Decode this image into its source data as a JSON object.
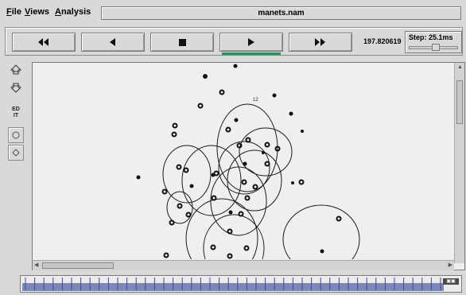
{
  "menu": {
    "file": "File",
    "views": "Views",
    "analysis": "Analysis"
  },
  "window": {
    "file_name": "manets.nam"
  },
  "controls": {
    "rewind_icon": "fast-rewind-icon",
    "back_icon": "step-back-icon",
    "stop_icon": "stop-icon",
    "play_icon": "play-icon",
    "forward_icon": "fast-forward-icon",
    "active_button": "play",
    "time": "197.820619",
    "step_label": "Step: 25.1ms",
    "step_slider_fraction": 0.55
  },
  "tools": {
    "zoom_in_icon": "zoom-in-icon",
    "zoom_out_icon": "zoom-out-icon",
    "edit_label": "ED\nIT",
    "node_shape_circle_icon": "circle-icon",
    "node_shape_diamond_icon": "diamond-icon"
  },
  "canvas": {
    "node_label": "12"
  },
  "timeline": {
    "badge_icon": "monitor-icon"
  }
}
